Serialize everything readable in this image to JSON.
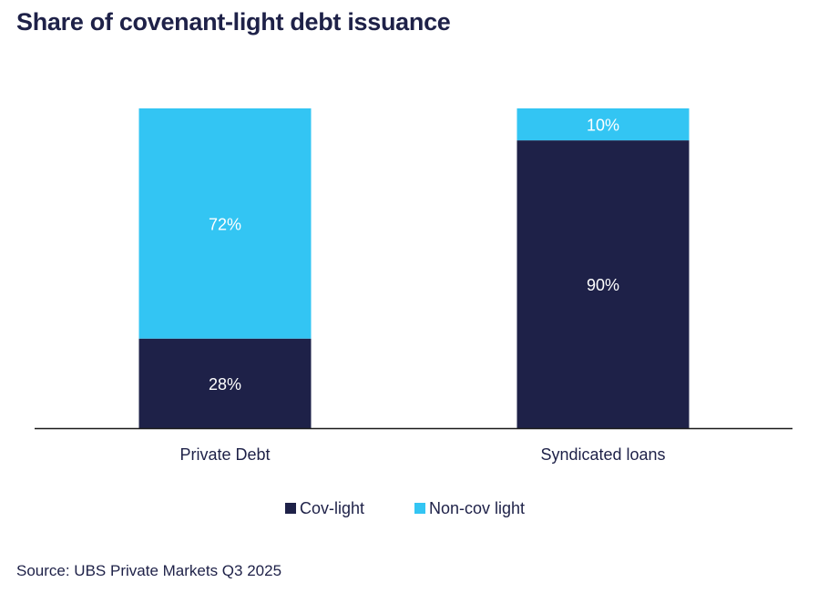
{
  "chart_data": {
    "type": "bar",
    "stacked": true,
    "title": "Share of covenant-light debt issuance",
    "categories": [
      "Private Debt",
      "Syndicated loans"
    ],
    "series": [
      {
        "name": "Cov-light",
        "values": [
          28,
          90
        ],
        "labels": [
          "28%",
          "90%"
        ],
        "color": "#1e2148"
      },
      {
        "name": "Non-cov light",
        "values": [
          72,
          10
        ],
        "labels": [
          "72%",
          "10%"
        ],
        "color": "#33c5f3"
      }
    ],
    "ylim": [
      0,
      100
    ],
    "grid": false,
    "legend_position": "bottom-center"
  },
  "source": "Source: UBS Private Markets Q3 2025"
}
